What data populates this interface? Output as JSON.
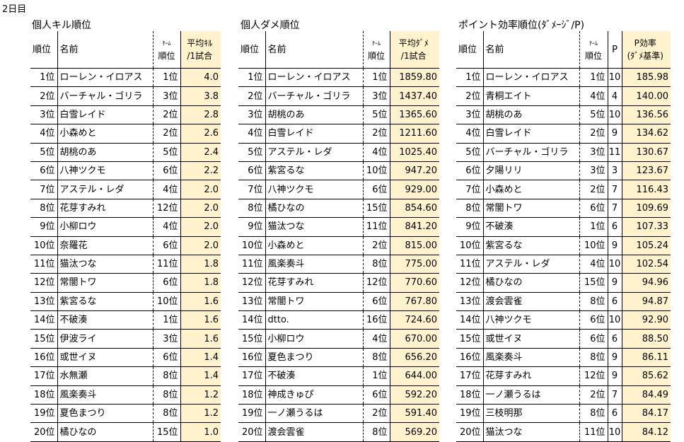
{
  "day_label": "2日目",
  "kill": {
    "title": "個人キル順位",
    "headers": {
      "rank": "順位",
      "name": "名前",
      "team_top": "ﾁｰﾑ",
      "team_bottom": "順位",
      "val_top": "平均ｷﾙ",
      "val_bottom": "/1試合"
    },
    "rows": [
      [
        "1位",
        "ローレン・イロアス",
        "1位",
        "4.0"
      ],
      [
        "2位",
        "バーチャル・ゴリラ",
        "3位",
        "3.8"
      ],
      [
        "3位",
        "白雪レイド",
        "2位",
        "2.8"
      ],
      [
        "4位",
        "小森めと",
        "2位",
        "2.6"
      ],
      [
        "5位",
        "胡桃のあ",
        "5位",
        "2.4"
      ],
      [
        "6位",
        "八神ツクモ",
        "6位",
        "2.2"
      ],
      [
        "7位",
        "アステル・レダ",
        "4位",
        "2.0"
      ],
      [
        "8位",
        "花芽すみれ",
        "12位",
        "2.0"
      ],
      [
        "9位",
        "小柳ロウ",
        "4位",
        "2.0"
      ],
      [
        "10位",
        "奈羅花",
        "6位",
        "2.0"
      ],
      [
        "11位",
        "猫汰つな",
        "11位",
        "1.8"
      ],
      [
        "12位",
        "常闇トワ",
        "6位",
        "1.8"
      ],
      [
        "13位",
        "紫宮るな",
        "10位",
        "1.6"
      ],
      [
        "14位",
        "不破湊",
        "1位",
        "1.6"
      ],
      [
        "15位",
        "伊波ライ",
        "3位",
        "1.6"
      ],
      [
        "16位",
        "或世イヌ",
        "6位",
        "1.4"
      ],
      [
        "17位",
        "水無瀬",
        "8位",
        "1.4"
      ],
      [
        "18位",
        "風楽奏斗",
        "8位",
        "1.2"
      ],
      [
        "19位",
        "夏色まつり",
        "8位",
        "1.2"
      ],
      [
        "20位",
        "橘ひなの",
        "15位",
        "1.0"
      ]
    ]
  },
  "dmg": {
    "title": "個人ダメ順位",
    "headers": {
      "rank": "順位",
      "name": "名前",
      "team_top": "ﾁｰﾑ",
      "team_bottom": "順位",
      "val_top": "平均ﾀﾞﾒ",
      "val_bottom": "/1試合"
    },
    "rows": [
      [
        "1位",
        "ローレン・イロアス",
        "1位",
        "1859.80"
      ],
      [
        "2位",
        "バーチャル・ゴリラ",
        "3位",
        "1437.40"
      ],
      [
        "3位",
        "胡桃のあ",
        "5位",
        "1365.60"
      ],
      [
        "4位",
        "白雪レイド",
        "2位",
        "1211.60"
      ],
      [
        "5位",
        "アステル・レダ",
        "4位",
        "1025.40"
      ],
      [
        "6位",
        "紫宮るな",
        "10位",
        "947.20"
      ],
      [
        "7位",
        "八神ツクモ",
        "6位",
        "929.00"
      ],
      [
        "8位",
        "橘ひなの",
        "15位",
        "854.60"
      ],
      [
        "9位",
        "猫汰つな",
        "11位",
        "841.20"
      ],
      [
        "10位",
        "小森めと",
        "2位",
        "815.00"
      ],
      [
        "11位",
        "風楽奏斗",
        "8位",
        "775.00"
      ],
      [
        "12位",
        "花芽すみれ",
        "12位",
        "770.60"
      ],
      [
        "13位",
        "常闇トワ",
        "6位",
        "767.80"
      ],
      [
        "14位",
        "dtto.",
        "16位",
        "724.60"
      ],
      [
        "15位",
        "小柳ロウ",
        "4位",
        "670.00"
      ],
      [
        "16位",
        "夏色まつり",
        "8位",
        "656.20"
      ],
      [
        "17位",
        "不破湊",
        "1位",
        "644.00"
      ],
      [
        "18位",
        "神成きゅぴ",
        "6位",
        "592.20"
      ],
      [
        "19位",
        "一ノ瀬うるは",
        "2位",
        "591.40"
      ],
      [
        "20位",
        "渡会雲雀",
        "8位",
        "569.20"
      ]
    ]
  },
  "eff": {
    "title": "ポイント効率順位(ﾀﾞﾒｰｼﾞ/P)",
    "headers": {
      "rank": "順位",
      "name": "名前",
      "team_top": "ﾁｰﾑ",
      "team_bottom": "順位",
      "pts": "P",
      "val_top": "P効率",
      "val_bottom": "(ﾀﾞﾒ基準)"
    },
    "rows": [
      [
        "1位",
        "ローレン・イロアス",
        "1位",
        "10",
        "185.98"
      ],
      [
        "2位",
        "青桐エイト",
        "4位",
        "4",
        "140.00"
      ],
      [
        "3位",
        "胡桃のあ",
        "5位",
        "10",
        "136.56"
      ],
      [
        "4位",
        "白雪レイド",
        "2位",
        "9",
        "134.62"
      ],
      [
        "5位",
        "バーチャル・ゴリラ",
        "3位",
        "11",
        "130.67"
      ],
      [
        "6位",
        "夕陽リリ",
        "3位",
        "3",
        "123.67"
      ],
      [
        "7位",
        "小森めと",
        "2位",
        "7",
        "116.43"
      ],
      [
        "8位",
        "常闇トワ",
        "6位",
        "7",
        "109.69"
      ],
      [
        "9位",
        "不破湊",
        "1位",
        "6",
        "107.33"
      ],
      [
        "10位",
        "紫宮るな",
        "10位",
        "9",
        "105.24"
      ],
      [
        "11位",
        "アステル・レダ",
        "4位",
        "10",
        "102.54"
      ],
      [
        "12位",
        "橘ひなの",
        "15位",
        "9",
        "94.96"
      ],
      [
        "13位",
        "渡会雲雀",
        "8位",
        "6",
        "94.87"
      ],
      [
        "14位",
        "八神ツクモ",
        "6位",
        "10",
        "92.90"
      ],
      [
        "15位",
        "或世イヌ",
        "6位",
        "6",
        "88.50"
      ],
      [
        "16位",
        "風楽奏斗",
        "8位",
        "9",
        "86.11"
      ],
      [
        "17位",
        "花芽すみれ",
        "12位",
        "9",
        "85.62"
      ],
      [
        "18位",
        "一ノ瀬うるは",
        "2位",
        "7",
        "84.49"
      ],
      [
        "19位",
        "三枝明那",
        "8位",
        "6",
        "84.17"
      ],
      [
        "20位",
        "猫汰つな",
        "11位",
        "10",
        "84.12"
      ]
    ]
  }
}
